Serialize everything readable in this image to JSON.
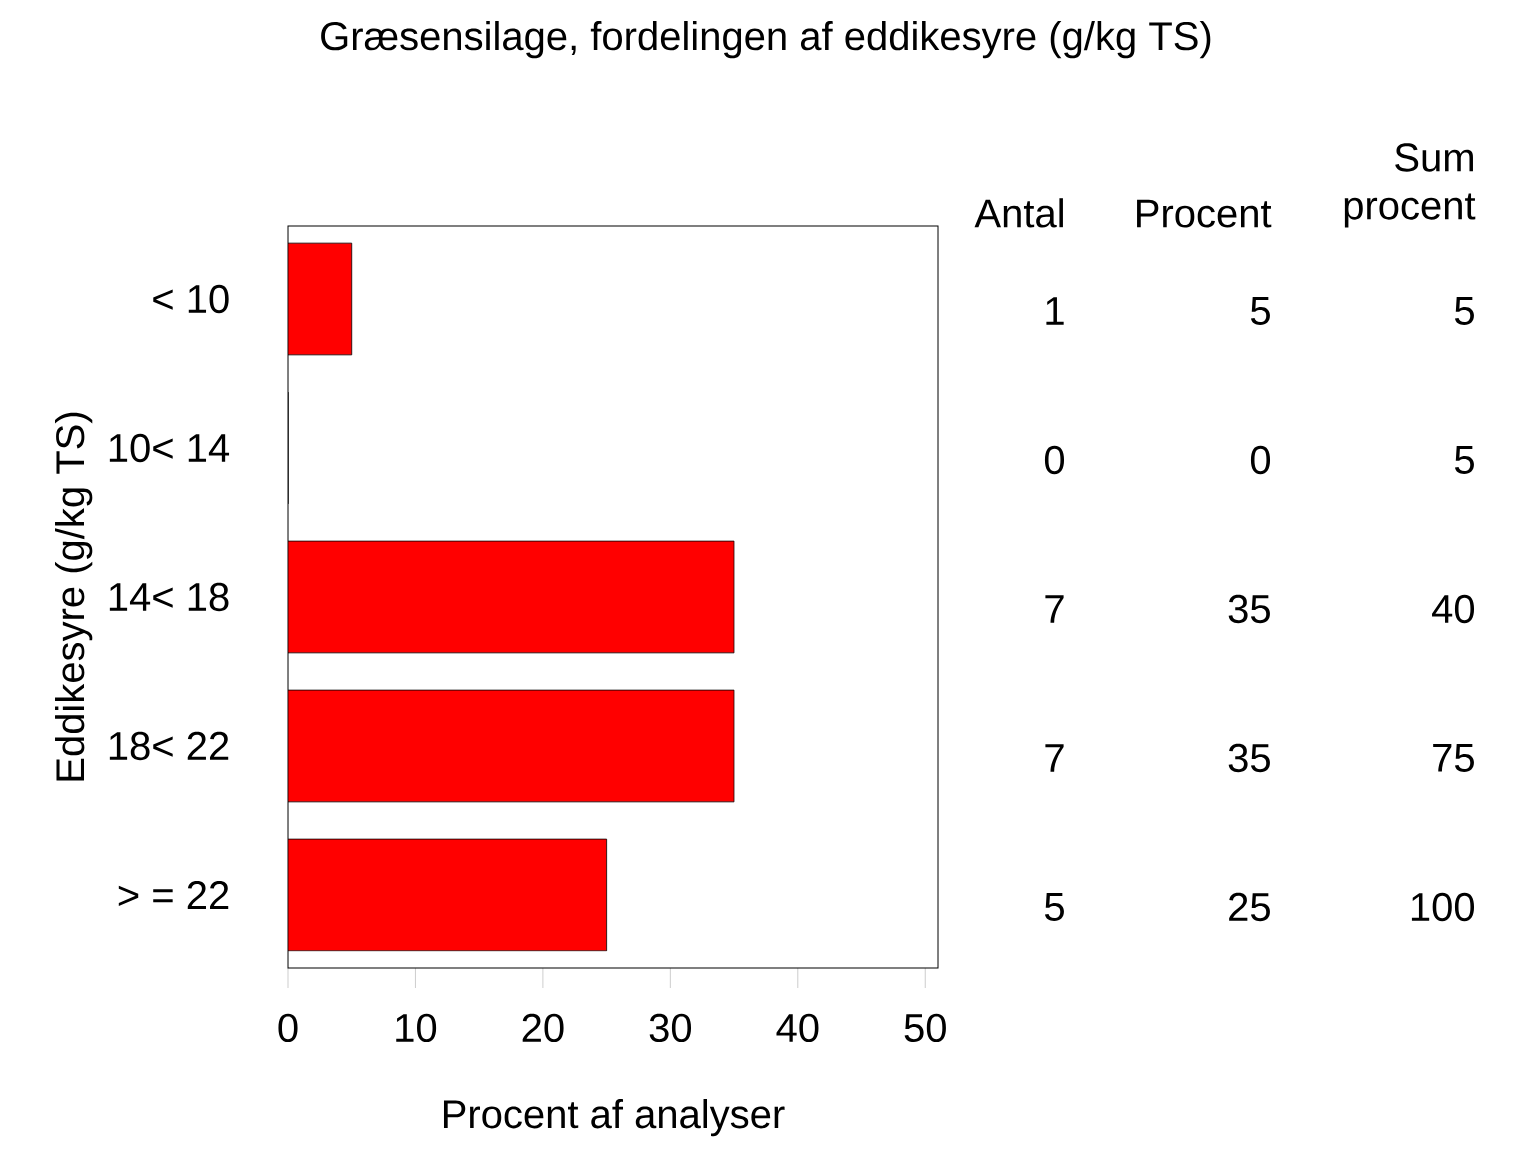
{
  "chart_data": {
    "type": "bar",
    "orientation": "horizontal",
    "title": "Græsensilage, fordelingen af eddikesyre (g/kg TS)",
    "xlabel": "Procent af analyser",
    "ylabel": "Eddikesyre (g/kg TS)",
    "categories": [
      "< 10",
      "10< 14",
      "14< 18",
      "18< 22",
      "> = 22"
    ],
    "values": [
      5,
      0,
      35,
      35,
      25
    ],
    "color": "#ff0000",
    "xlim": [
      0,
      51
    ],
    "xticks": [
      0,
      10,
      20,
      30,
      40,
      50
    ],
    "value_labels": [
      "5",
      "0",
      "35",
      "35",
      "25"
    ],
    "annotations": [
      "Antal",
      "Procent",
      "Sum procent",
      "1",
      "0",
      "7",
      "7",
      "5",
      "5",
      "5",
      "40",
      "75",
      "100"
    ]
  }
}
